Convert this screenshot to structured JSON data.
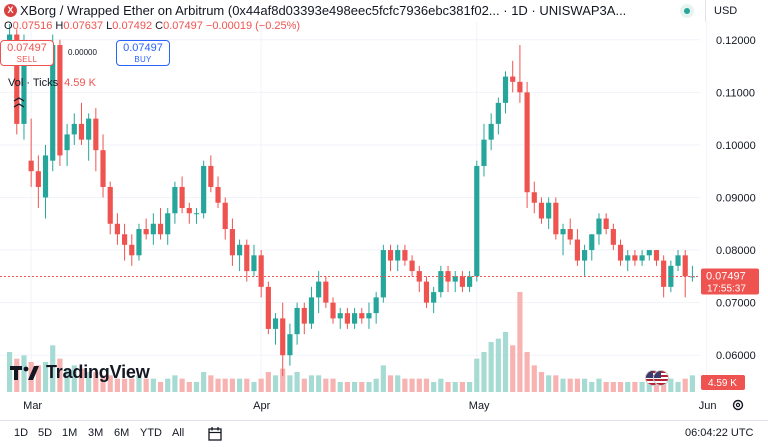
{
  "header": {
    "pair_title": "XBorg / Wrapped Ether on Arbitrum (0x44af8d03393e498eec5fcfc7936ebc381f02... · 1D · UNISWAP3A...",
    "currency": "USD",
    "logo_letter": "X"
  },
  "ohlc": {
    "o_label": "O",
    "o": "0.07516",
    "h_label": "H",
    "h": "0.07637",
    "l_label": "L",
    "l": "0.07492",
    "c_label": "C",
    "c": "0.07497",
    "change": "−0.00019 (−0.25%)"
  },
  "trade": {
    "sell_price": "0.07497",
    "sell_label": "SELL",
    "spread": "0.00000",
    "buy_price": "0.07497",
    "buy_label": "BUY"
  },
  "volume_legend": {
    "label": "Vol · Ticks",
    "value": "4.59 K"
  },
  "price_badge": {
    "price": "0.07497",
    "countdown": "17:55:37"
  },
  "volume_badge": "4.59 K",
  "branding": "TradingView",
  "toolbar": {
    "ranges": [
      "1D",
      "5D",
      "1M",
      "3M",
      "6M",
      "YTD",
      "All"
    ],
    "clock": "06:04:22 UTC"
  },
  "colors": {
    "up": "#26a69a",
    "down": "#ef5350",
    "up_vol": "#a6dbd3",
    "down_vol": "#f7b3b1"
  },
  "chart_data": {
    "type": "candlestick",
    "y_ticks": [
      "0.12000",
      "0.11000",
      "0.10000",
      "0.09000",
      "0.08000",
      "0.07000",
      "0.06000"
    ],
    "y_tick_values": [
      0.12,
      0.11,
      0.1,
      0.09,
      0.08,
      0.07,
      0.06
    ],
    "x_labels": [
      {
        "label": "Mar",
        "index": 3
      },
      {
        "label": "Apr",
        "index": 35
      },
      {
        "label": "May",
        "index": 65
      },
      {
        "label": "Jun",
        "index": 97
      }
    ],
    "ylim": [
      0.053,
      0.123
    ],
    "current_price": 0.07497,
    "candles": [
      [
        0.118,
        0.123,
        0.116,
        0.121,
        12
      ],
      [
        0.121,
        0.122,
        0.102,
        0.104,
        10
      ],
      [
        0.104,
        0.121,
        0.101,
        0.117,
        11
      ],
      [
        0.097,
        0.105,
        0.092,
        0.095,
        9
      ],
      [
        0.095,
        0.098,
        0.088,
        0.092,
        8
      ],
      [
        0.09,
        0.1,
        0.086,
        0.098,
        9
      ],
      [
        0.097,
        0.121,
        0.095,
        0.119,
        14
      ],
      [
        0.119,
        0.12,
        0.096,
        0.098,
        10
      ],
      [
        0.099,
        0.104,
        0.096,
        0.102,
        7
      ],
      [
        0.102,
        0.106,
        0.1,
        0.104,
        8
      ],
      [
        0.104,
        0.108,
        0.1,
        0.101,
        7
      ],
      [
        0.101,
        0.106,
        0.097,
        0.105,
        6
      ],
      [
        0.105,
        0.107,
        0.095,
        0.099,
        6
      ],
      [
        0.099,
        0.102,
        0.09,
        0.092,
        5
      ],
      [
        0.092,
        0.093,
        0.083,
        0.085,
        5
      ],
      [
        0.085,
        0.087,
        0.081,
        0.083,
        4
      ],
      [
        0.083,
        0.085,
        0.078,
        0.081,
        4
      ],
      [
        0.081,
        0.083,
        0.077,
        0.079,
        4
      ],
      [
        0.079,
        0.085,
        0.078,
        0.084,
        5
      ],
      [
        0.084,
        0.086,
        0.082,
        0.083,
        4
      ],
      [
        0.083,
        0.087,
        0.081,
        0.085,
        4
      ],
      [
        0.085,
        0.088,
        0.082,
        0.083,
        3
      ],
      [
        0.083,
        0.088,
        0.081,
        0.087,
        4
      ],
      [
        0.087,
        0.093,
        0.085,
        0.092,
        5
      ],
      [
        0.092,
        0.094,
        0.087,
        0.088,
        4
      ],
      [
        0.088,
        0.089,
        0.085,
        0.087,
        3
      ],
      [
        0.087,
        0.088,
        0.085,
        0.087,
        3
      ],
      [
        0.087,
        0.097,
        0.086,
        0.096,
        6
      ],
      [
        0.096,
        0.098,
        0.091,
        0.092,
        5
      ],
      [
        0.092,
        0.094,
        0.088,
        0.089,
        4
      ],
      [
        0.089,
        0.09,
        0.082,
        0.084,
        4
      ],
      [
        0.084,
        0.086,
        0.077,
        0.079,
        4
      ],
      [
        0.079,
        0.082,
        0.076,
        0.081,
        4
      ],
      [
        0.081,
        0.082,
        0.074,
        0.076,
        4
      ],
      [
        0.076,
        0.081,
        0.075,
        0.079,
        3
      ],
      [
        0.079,
        0.08,
        0.071,
        0.073,
        4
      ],
      [
        0.073,
        0.074,
        0.064,
        0.065,
        6
      ],
      [
        0.065,
        0.068,
        0.062,
        0.067,
        5
      ],
      [
        0.067,
        0.07,
        0.056,
        0.06,
        7
      ],
      [
        0.06,
        0.066,
        0.058,
        0.064,
        5
      ],
      [
        0.064,
        0.07,
        0.062,
        0.069,
        6
      ],
      [
        0.069,
        0.07,
        0.064,
        0.066,
        4
      ],
      [
        0.066,
        0.073,
        0.065,
        0.071,
        5
      ],
      [
        0.071,
        0.076,
        0.068,
        0.074,
        5
      ],
      [
        0.074,
        0.075,
        0.069,
        0.07,
        4
      ],
      [
        0.07,
        0.071,
        0.066,
        0.067,
        4
      ],
      [
        0.067,
        0.069,
        0.065,
        0.068,
        3
      ],
      [
        0.068,
        0.069,
        0.065,
        0.066,
        3
      ],
      [
        0.066,
        0.069,
        0.065,
        0.068,
        3
      ],
      [
        0.068,
        0.069,
        0.066,
        0.067,
        3
      ],
      [
        0.067,
        0.07,
        0.065,
        0.068,
        3
      ],
      [
        0.068,
        0.072,
        0.066,
        0.071,
        4
      ],
      [
        0.071,
        0.081,
        0.07,
        0.08,
        8
      ],
      [
        0.08,
        0.081,
        0.076,
        0.078,
        5
      ],
      [
        0.078,
        0.081,
        0.076,
        0.08,
        5
      ],
      [
        0.08,
        0.081,
        0.077,
        0.078,
        4
      ],
      [
        0.078,
        0.079,
        0.075,
        0.076,
        4
      ],
      [
        0.076,
        0.077,
        0.072,
        0.074,
        4
      ],
      [
        0.074,
        0.075,
        0.069,
        0.07,
        4
      ],
      [
        0.07,
        0.073,
        0.068,
        0.072,
        3
      ],
      [
        0.072,
        0.077,
        0.071,
        0.076,
        4
      ],
      [
        0.076,
        0.077,
        0.072,
        0.074,
        3
      ],
      [
        0.074,
        0.076,
        0.072,
        0.075,
        3
      ],
      [
        0.075,
        0.076,
        0.072,
        0.073,
        3
      ],
      [
        0.073,
        0.076,
        0.072,
        0.075,
        3
      ],
      [
        0.075,
        0.097,
        0.074,
        0.096,
        10
      ],
      [
        0.096,
        0.104,
        0.094,
        0.101,
        12
      ],
      [
        0.101,
        0.106,
        0.099,
        0.104,
        15
      ],
      [
        0.104,
        0.109,
        0.102,
        0.108,
        16
      ],
      [
        0.108,
        0.114,
        0.106,
        0.113,
        18
      ],
      [
        0.113,
        0.116,
        0.11,
        0.112,
        14
      ],
      [
        0.112,
        0.119,
        0.108,
        0.11,
        30
      ],
      [
        0.11,
        0.112,
        0.088,
        0.091,
        12
      ],
      [
        0.091,
        0.093,
        0.087,
        0.089,
        8
      ],
      [
        0.089,
        0.09,
        0.085,
        0.086,
        6
      ],
      [
        0.086,
        0.09,
        0.084,
        0.089,
        5
      ],
      [
        0.089,
        0.09,
        0.082,
        0.083,
        5
      ],
      [
        0.083,
        0.085,
        0.079,
        0.084,
        4
      ],
      [
        0.084,
        0.086,
        0.081,
        0.082,
        4
      ],
      [
        0.082,
        0.084,
        0.077,
        0.078,
        4
      ],
      [
        0.078,
        0.081,
        0.075,
        0.08,
        4
      ],
      [
        0.08,
        0.083,
        0.078,
        0.083,
        3
      ],
      [
        0.083,
        0.087,
        0.081,
        0.086,
        4
      ],
      [
        0.086,
        0.087,
        0.083,
        0.084,
        3
      ],
      [
        0.084,
        0.085,
        0.08,
        0.081,
        3
      ],
      [
        0.081,
        0.082,
        0.077,
        0.078,
        3
      ],
      [
        0.078,
        0.08,
        0.076,
        0.079,
        3
      ],
      [
        0.079,
        0.08,
        0.077,
        0.078,
        3
      ],
      [
        0.078,
        0.08,
        0.077,
        0.079,
        3
      ],
      [
        0.079,
        0.08,
        0.078,
        0.08,
        3
      ],
      [
        0.08,
        0.08,
        0.077,
        0.078,
        3
      ],
      [
        0.078,
        0.079,
        0.071,
        0.073,
        4
      ],
      [
        0.073,
        0.078,
        0.072,
        0.077,
        4
      ],
      [
        0.077,
        0.08,
        0.076,
        0.079,
        3
      ],
      [
        0.079,
        0.08,
        0.071,
        0.075,
        4
      ],
      [
        0.075,
        0.077,
        0.074,
        0.075,
        5
      ]
    ]
  }
}
